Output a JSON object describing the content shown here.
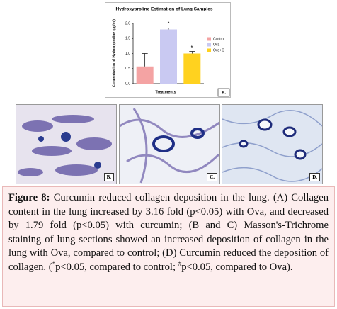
{
  "chart_data": {
    "type": "bar",
    "title": "Hydroxyproline Estimation of Lung Samples",
    "y_label": "Concentration of Hydroxyproline (µg/ml)",
    "x_label": "Treatments",
    "panel_label": "A.",
    "categories": [
      "Control",
      "Ova",
      "Ova+C"
    ],
    "values": [
      0.57,
      1.8,
      1.0
    ],
    "errors": [
      0.43,
      0.05,
      0.07
    ],
    "colors": [
      "#f4a3a3",
      "#c9c9f2",
      "#ffd21f"
    ],
    "bar_labels": [
      null,
      "*",
      "#"
    ],
    "ylim": [
      0,
      2.0
    ],
    "yticks": [
      {
        "value": 0,
        "label": "0.0"
      },
      0.5,
      {
        "value": 1,
        "label": "1.0"
      },
      1.5,
      {
        "value": 2,
        "label": "2.0"
      }
    ]
  },
  "panels": [
    {
      "label": "B."
    },
    {
      "label": "C."
    },
    {
      "label": "D."
    }
  ],
  "caption": {
    "label": "Figure 8:",
    "text_1": " Curcumin reduced collagen deposition in the lung. (A) Collagen content in the lung increased by 3.16 fold (p<0.05) with Ova, and decreased by 1.79 fold (p<0.05) with curcumin; (B and C) Masson's-Trichrome staining of lung sections showed an increased deposition of collagen in the lung with Ova, compared to control; (D) Curcumin reduced the deposition of collagen. (",
    "sup_1": "*",
    "text_2": "p<0.05, compared to control; ",
    "sup_2": "#",
    "text_3": "p<0.05, compared to Ova)."
  }
}
